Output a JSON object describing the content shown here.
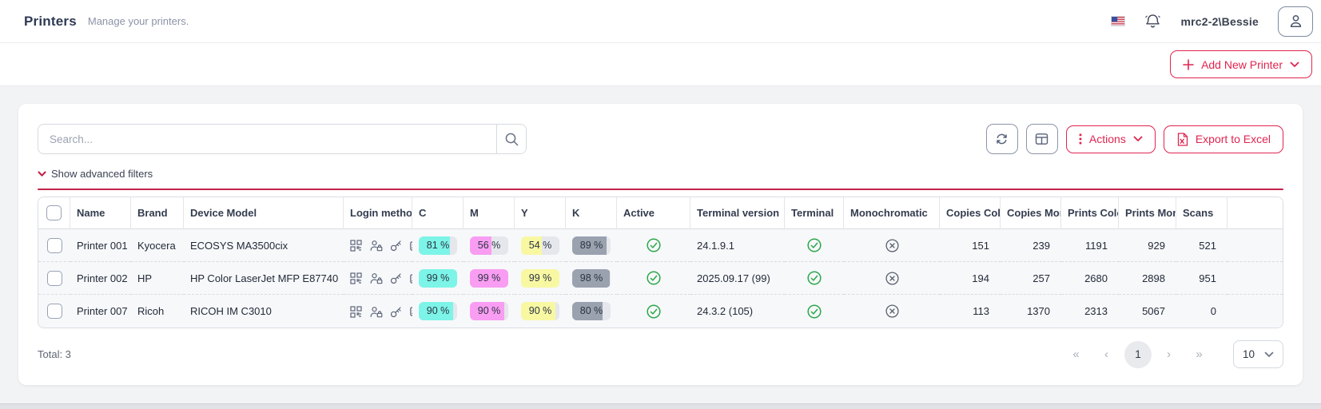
{
  "header": {
    "title": "Printers",
    "subtitle": "Manage your printers.",
    "username": "mrc2-2\\Bessie",
    "language_flag": "us-flag"
  },
  "toolbar": {
    "add_new_printer_label": "Add New Printer"
  },
  "controls": {
    "search_placeholder": "Search...",
    "actions_label": "Actions",
    "export_label": "Export to Excel",
    "filters_label": "Show advanced filters"
  },
  "colors": {
    "accent_red": "#e0254f",
    "success_green": "#2aa74a",
    "toner_c": "#7cf4e7",
    "toner_m": "#f99df2",
    "toner_y": "#f8f8a3",
    "toner_k": "#9aa1af"
  },
  "table": {
    "columns": [
      "",
      "Name",
      "Brand",
      "Device Model",
      "Login methods",
      "C",
      "M",
      "Y",
      "K",
      "Active",
      "Terminal version",
      "Terminal",
      "Monochromatic",
      "Copies Color",
      "Copies Mono",
      "Prints Color",
      "Prints Mono",
      "Scans"
    ],
    "login_method_icons": [
      "qr-code",
      "user-lock",
      "key",
      "id-card"
    ],
    "rows": [
      {
        "name": "Printer 001",
        "brand": "Kyocera",
        "model": "ECOSYS MA3500cix",
        "c": "81 %",
        "m": "56 %",
        "y": "54 %",
        "k": "89 %",
        "active": true,
        "terminal_version": "24.1.9.1",
        "terminal": true,
        "monochromatic": false,
        "copies_color": 151,
        "copies_mono": 239,
        "prints_color": 1191,
        "prints_mono": 929,
        "scans": 521
      },
      {
        "name": "Printer 002",
        "brand": "HP",
        "model": "HP Color LaserJet MFP E87740",
        "c": "99 %",
        "m": "99 %",
        "y": "99 %",
        "k": "98 %",
        "active": true,
        "terminal_version": "2025.09.17 (99)",
        "terminal": true,
        "monochromatic": false,
        "copies_color": 194,
        "copies_mono": 257,
        "prints_color": 2680,
        "prints_mono": 2898,
        "scans": 951
      },
      {
        "name": "Printer 007",
        "brand": "Ricoh",
        "model": "RICOH IM C3010",
        "c": "90 %",
        "m": "90 %",
        "y": "90 %",
        "k": "80 %",
        "active": true,
        "terminal_version": "24.3.2 (105)",
        "terminal": true,
        "monochromatic": false,
        "copies_color": 113,
        "copies_mono": 1370,
        "prints_color": 2313,
        "prints_mono": 5067,
        "scans": 0
      }
    ]
  },
  "footer": {
    "total_label": "Total: 3",
    "first": "«",
    "prev": "‹",
    "current_page": "1",
    "next": "›",
    "last": "»",
    "page_size": "10"
  }
}
